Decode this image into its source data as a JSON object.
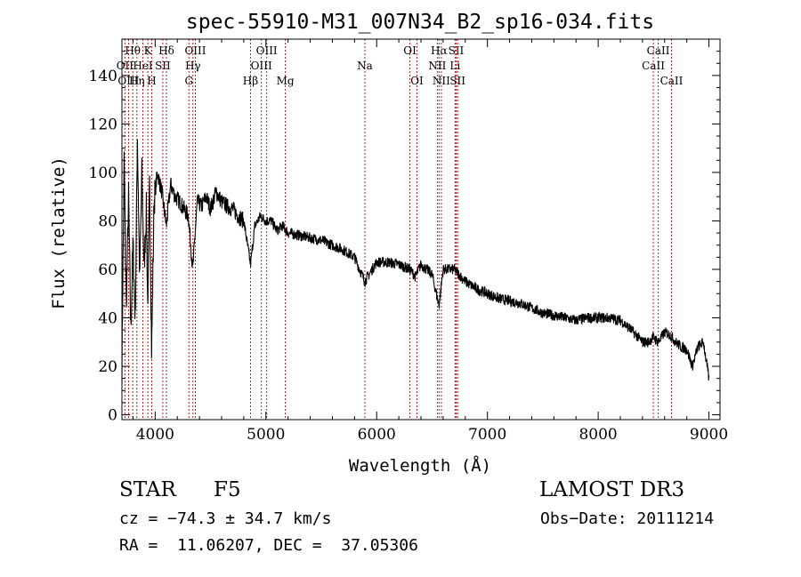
{
  "chart_data": {
    "type": "line",
    "title": "spec-55910-M31_007N34_B2_sp16-034.fits",
    "xlabel": "Wavelength (Å)",
    "ylabel": "Flux (relative)",
    "xlim": [
      3700,
      9100
    ],
    "ylim": [
      -2,
      155
    ],
    "x_ticks": [
      4000,
      5000,
      6000,
      7000,
      8000,
      9000
    ],
    "y_ticks": [
      0,
      20,
      40,
      60,
      80,
      100,
      120,
      140
    ],
    "line_color": "#000000",
    "marker_color": "#b22222",
    "spectrum": {
      "name": "flux",
      "x": [
        3700,
        3720,
        3740,
        3760,
        3780,
        3800,
        3820,
        3840,
        3860,
        3880,
        3900,
        3920,
        3933,
        3950,
        3968,
        3990,
        4020,
        4060,
        4101,
        4140,
        4180,
        4220,
        4260,
        4300,
        4340,
        4380,
        4420,
        4460,
        4500,
        4550,
        4600,
        4650,
        4700,
        4750,
        4800,
        4861,
        4900,
        4950,
        5000,
        5050,
        5100,
        5150,
        5200,
        5300,
        5400,
        5500,
        5600,
        5700,
        5800,
        5893,
        6000,
        6100,
        6200,
        6300,
        6350,
        6400,
        6500,
        6563,
        6600,
        6700,
        6800,
        6900,
        7000,
        7100,
        7200,
        7300,
        7400,
        7500,
        7600,
        7700,
        7800,
        7900,
        8000,
        8100,
        8200,
        8300,
        8400,
        8450,
        8500,
        8542,
        8600,
        8650,
        8700,
        8750,
        8800,
        8850,
        8900,
        8950,
        9000
      ],
      "values": [
        20,
        105,
        45,
        90,
        35,
        70,
        40,
        115,
        55,
        100,
        60,
        85,
        45,
        95,
        25,
        88,
        100,
        92,
        78,
        95,
        90,
        88,
        85,
        82,
        60,
        88,
        86,
        90,
        85,
        92,
        88,
        86,
        85,
        82,
        80,
        62,
        78,
        82,
        80,
        80,
        76,
        78,
        75,
        74,
        73,
        72,
        70,
        68,
        65,
        55,
        63,
        63,
        62,
        60,
        57,
        62,
        58,
        45,
        60,
        60,
        55,
        52,
        50,
        48,
        47,
        46,
        44,
        42,
        41,
        40,
        39,
        40,
        40,
        40,
        39,
        35,
        30,
        30,
        32,
        30,
        34,
        33,
        30,
        28,
        27,
        20,
        28,
        30,
        15
      ]
    },
    "line_markers": [
      {
        "label": "Hθ",
        "wavelength": 3798,
        "row": 1
      },
      {
        "label": "OII",
        "wavelength": 3727,
        "row": 2
      },
      {
        "label": "OIII",
        "wavelength": 3760,
        "row": 3
      },
      {
        "label": "K",
        "wavelength": 3934,
        "row": 1
      },
      {
        "label": "HeI",
        "wavelength": 3889,
        "row": 2
      },
      {
        "label": "Hη",
        "wavelength": 3835,
        "row": 3
      },
      {
        "label": "SII",
        "wavelength": 4069,
        "row": 2
      },
      {
        "label": "H",
        "wavelength": 3969,
        "row": 3
      },
      {
        "label": "Hδ",
        "wavelength": 4102,
        "row": 1
      },
      {
        "label": "OIII",
        "wavelength": 4363,
        "row": 1
      },
      {
        "label": "Hγ",
        "wavelength": 4341,
        "row": 2
      },
      {
        "label": "G",
        "wavelength": 4305,
        "row": 3
      },
      {
        "label": "OIII",
        "wavelength": 5007,
        "row": 1
      },
      {
        "label": "OIII",
        "wavelength": 4959,
        "row": 2
      },
      {
        "label": "Hβ",
        "wavelength": 4861,
        "row": 3
      },
      {
        "label": "Mg",
        "wavelength": 5175,
        "row": 3
      },
      {
        "label": "Na",
        "wavelength": 5893,
        "row": 2
      },
      {
        "label": "OI",
        "wavelength": 6300,
        "row": 1
      },
      {
        "label": "OI",
        "wavelength": 6364,
        "row": 3
      },
      {
        "label": "Hα",
        "wavelength": 6563,
        "row": 1
      },
      {
        "label": "SII",
        "wavelength": 6717,
        "row": 1
      },
      {
        "label": "NII",
        "wavelength": 6548,
        "row": 2
      },
      {
        "label": "Li",
        "wavelength": 6708,
        "row": 2
      },
      {
        "label": "NII",
        "wavelength": 6584,
        "row": 3
      },
      {
        "label": "SII",
        "wavelength": 6731,
        "row": 3
      },
      {
        "label": "CaII",
        "wavelength": 8542,
        "row": 1
      },
      {
        "label": "CaII",
        "wavelength": 8498,
        "row": 2
      },
      {
        "label": "CaII",
        "wavelength": 8662,
        "row": 3
      }
    ]
  },
  "info": {
    "object_type": "STAR",
    "spectral_class": "F5",
    "survey": "LAMOST DR3",
    "cz_line": "cz = −74.3 ± 34.7 km/s",
    "obs_date_line": "Obs−Date: 20111214",
    "radec_line": "RA =  11.06207, DEC =  37.05306"
  }
}
